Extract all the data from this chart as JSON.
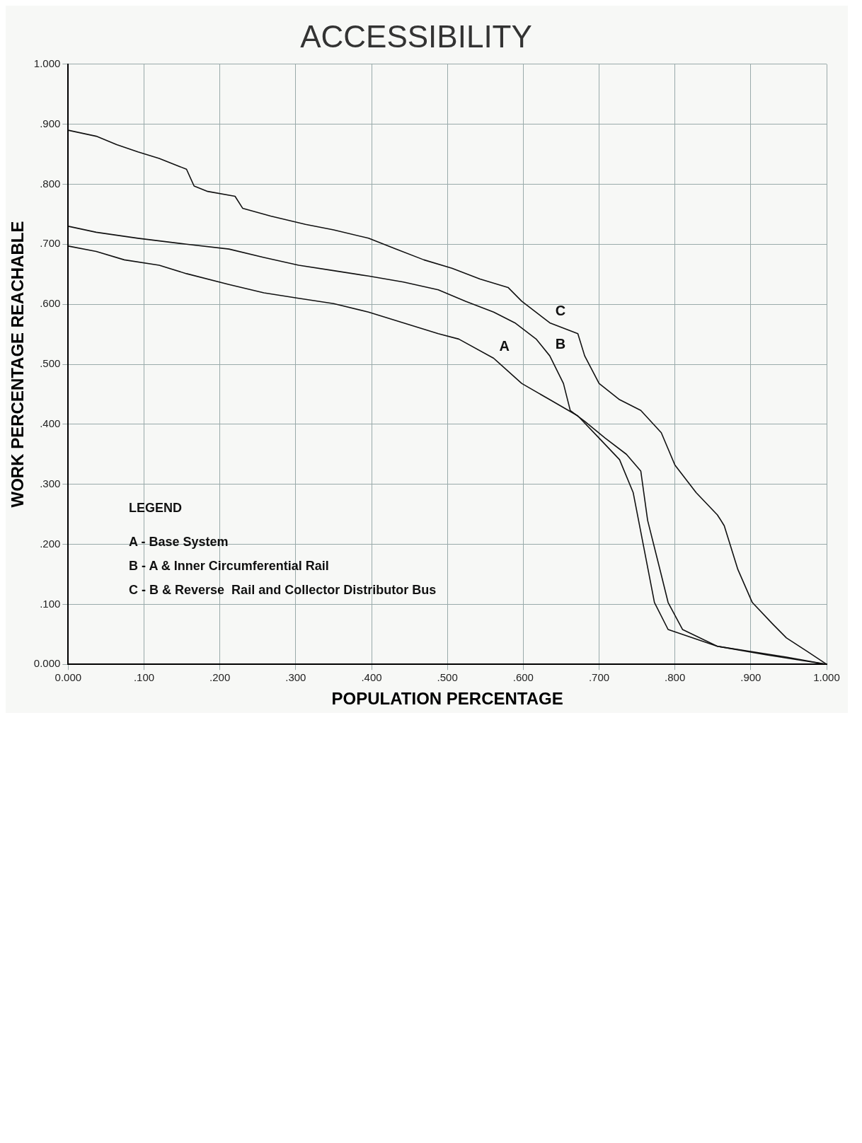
{
  "chart_data": {
    "type": "line",
    "title": "ACCESSIBILITY",
    "xlabel": "POPULATION PERCENTAGE",
    "ylabel": "WORK PERCENTAGE REACHABLE",
    "xlim": [
      0,
      1
    ],
    "ylim": [
      0,
      1
    ],
    "xticks": [
      {
        "value": 0,
        "label": "0.000"
      },
      {
        "value": 0.1,
        "label": ".100"
      },
      {
        "value": 0.2,
        "label": ".200"
      },
      {
        "value": 0.3,
        "label": ".300"
      },
      {
        "value": 0.4,
        "label": ".400"
      },
      {
        "value": 0.5,
        "label": ".500"
      },
      {
        "value": 0.6,
        "label": ".600"
      },
      {
        "value": 0.7,
        "label": ".700"
      },
      {
        "value": 0.8,
        "label": ".800"
      },
      {
        "value": 0.9,
        "label": ".900"
      },
      {
        "value": 1,
        "label": "1.000"
      }
    ],
    "yticks": [
      {
        "value": 0,
        "label": "0.000"
      },
      {
        "value": 0.1,
        "label": ".100"
      },
      {
        "value": 0.2,
        "label": ".200"
      },
      {
        "value": 0.3,
        "label": ".300"
      },
      {
        "value": 0.4,
        "label": ".400"
      },
      {
        "value": 0.5,
        "label": ".500"
      },
      {
        "value": 0.6,
        "label": ".600"
      },
      {
        "value": 0.7,
        "label": ".700"
      },
      {
        "value": 0.8,
        "label": ".800"
      },
      {
        "value": 0.9,
        "label": ".900"
      },
      {
        "value": 1,
        "label": "1.000"
      }
    ],
    "grid": true,
    "legend": false,
    "marker": "none",
    "line_style": "solid",
    "series": [
      {
        "name": "C",
        "color": "#111111",
        "x": [
          0,
          0.037,
          0.064,
          0.092,
          0.12,
          0.156,
          0.166,
          0.184,
          0.22,
          0.23,
          0.267,
          0.313,
          0.35,
          0.396,
          0.432,
          0.469,
          0.506,
          0.543,
          0.58,
          0.598,
          0.635,
          0.672,
          0.681,
          0.7,
          0.727,
          0.755,
          0.782,
          0.8,
          0.828,
          0.856,
          0.865,
          0.883,
          0.902,
          0.929,
          0.947,
          0.975,
          1
        ],
        "values": [
          0.89,
          0.88,
          0.866,
          0.854,
          0.843,
          0.825,
          0.797,
          0.788,
          0.78,
          0.76,
          0.747,
          0.733,
          0.724,
          0.71,
          0.692,
          0.674,
          0.66,
          0.642,
          0.628,
          0.605,
          0.569,
          0.551,
          0.514,
          0.468,
          0.441,
          0.423,
          0.386,
          0.332,
          0.286,
          0.249,
          0.231,
          0.158,
          0.103,
          0.067,
          0.044,
          0.021,
          0
        ]
      },
      {
        "name": "B",
        "color": "#111111",
        "x": [
          0,
          0.037,
          0.092,
          0.156,
          0.212,
          0.258,
          0.304,
          0.35,
          0.396,
          0.442,
          0.488,
          0.524,
          0.561,
          0.589,
          0.617,
          0.635,
          0.653,
          0.662,
          0.681,
          0.708,
          0.736,
          0.755,
          0.764,
          0.782,
          0.791,
          0.81,
          0.856,
          0.92,
          1
        ],
        "values": [
          0.73,
          0.72,
          0.71,
          0.7,
          0.692,
          0.678,
          0.665,
          0.656,
          0.647,
          0.637,
          0.624,
          0.605,
          0.587,
          0.569,
          0.542,
          0.514,
          0.468,
          0.423,
          0.405,
          0.377,
          0.35,
          0.322,
          0.24,
          0.149,
          0.103,
          0.058,
          0.03,
          0.016,
          0
        ]
      },
      {
        "name": "A",
        "color": "#111111",
        "x": [
          0,
          0.037,
          0.074,
          0.12,
          0.156,
          0.212,
          0.258,
          0.304,
          0.35,
          0.396,
          0.442,
          0.488,
          0.515,
          0.561,
          0.598,
          0.635,
          0.672,
          0.7,
          0.727,
          0.745,
          0.773,
          0.791,
          0.856,
          0.947,
          1
        ],
        "values": [
          0.697,
          0.688,
          0.674,
          0.665,
          0.651,
          0.633,
          0.619,
          0.61,
          0.601,
          0.587,
          0.569,
          0.551,
          0.542,
          0.51,
          0.468,
          0.441,
          0.414,
          0.377,
          0.341,
          0.286,
          0.103,
          0.058,
          0.03,
          0.012,
          0
        ]
      }
    ],
    "annotations": [
      "LEGEND",
      "A - Base System",
      "B - A & Inner Circumferential Rail",
      "C - B & Reverse  Rail and Collector Distributor Bus"
    ]
  }
}
